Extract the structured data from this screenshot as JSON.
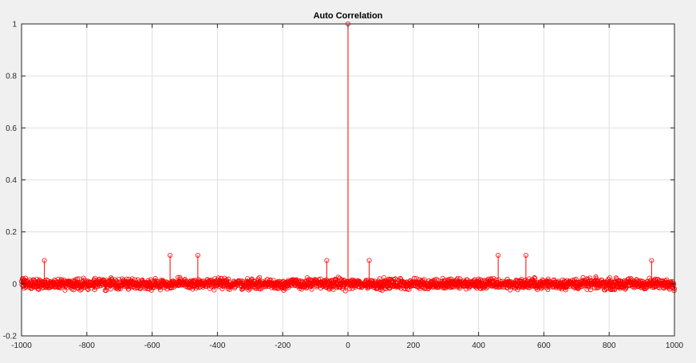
{
  "chart_data": {
    "type": "stem",
    "title": "Auto Correlation",
    "xlabel": "",
    "ylabel": "",
    "xlim": [
      -1000,
      1000
    ],
    "ylim": [
      -0.2,
      1
    ],
    "x_ticks": [
      -1000,
      -800,
      -600,
      -400,
      -200,
      0,
      200,
      400,
      600,
      800,
      1000
    ],
    "y_ticks": [
      -0.2,
      0,
      0.2,
      0.4,
      0.6,
      0.8,
      1
    ],
    "x_tick_labels": [
      "-1000",
      "-800",
      "-600",
      "-400",
      "-200",
      "0",
      "200",
      "400",
      "600",
      "800",
      "1000"
    ],
    "y_tick_labels": [
      "-0.2",
      "0",
      "0.2",
      "0.4",
      "0.6",
      "0.8",
      "1"
    ],
    "grid": true,
    "marker": "circle",
    "series": [
      {
        "lag_range": [
          -1000,
          1000
        ],
        "lag_step": 1,
        "peak": {
          "x": 0,
          "y": 1
        },
        "sidelobe_typical_range": [
          -0.08,
          0.08
        ],
        "notable_sidelobes": [
          {
            "x": -930,
            "y": 0.09
          },
          {
            "x": -545,
            "y": 0.11
          },
          {
            "x": -460,
            "y": 0.11
          },
          {
            "x": -65,
            "y": 0.09
          },
          {
            "x": 65,
            "y": 0.09
          },
          {
            "x": 460,
            "y": 0.11
          },
          {
            "x": 545,
            "y": 0.11
          },
          {
            "x": 930,
            "y": 0.09
          }
        ]
      }
    ]
  },
  "colors": {
    "stem": "#ff0000",
    "axes_background": "#ffffff",
    "figure_background": "#f0f0f0",
    "grid": "#dfdfdf",
    "axis": "#262626"
  }
}
